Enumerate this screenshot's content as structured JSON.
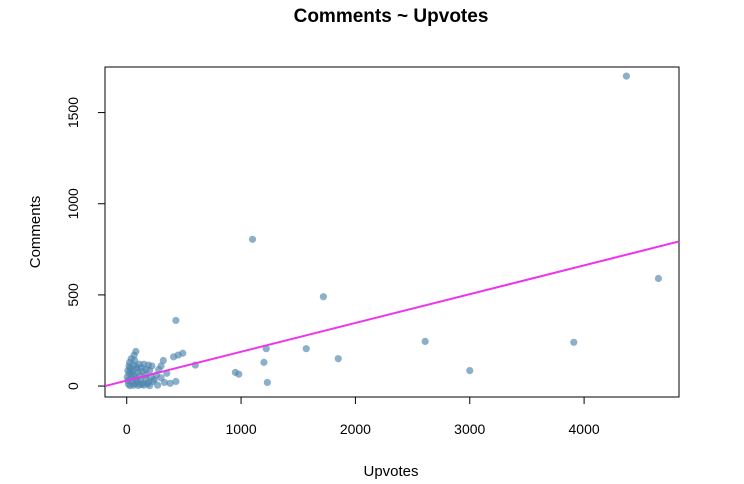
{
  "chart_data": {
    "type": "scatter",
    "title": "Comments ~ Upvotes",
    "xlabel": "Upvotes",
    "ylabel": "Comments",
    "xlim": [
      -190,
      4830
    ],
    "ylim": [
      -60,
      1750
    ],
    "x_ticks": [
      0,
      1000,
      2000,
      3000,
      4000
    ],
    "x_tick_labels": [
      "0",
      "1000",
      "2000",
      "3000",
      "4000"
    ],
    "y_ticks": [
      0,
      500,
      1000,
      1500
    ],
    "y_tick_labels": [
      "0",
      "500",
      "1000",
      "1500"
    ],
    "grid": false,
    "colors": {
      "points": "#4f86ad",
      "fit_line": "#ee33ee"
    },
    "fit_line": {
      "intercept": 30,
      "slope": 0.158
    },
    "points": [
      {
        "x": 4370,
        "y": 1700
      },
      {
        "x": 1100,
        "y": 805
      },
      {
        "x": 4650,
        "y": 590
      },
      {
        "x": 1720,
        "y": 490
      },
      {
        "x": 430,
        "y": 360
      },
      {
        "x": 2610,
        "y": 245
      },
      {
        "x": 3910,
        "y": 240
      },
      {
        "x": 1220,
        "y": 205
      },
      {
        "x": 1570,
        "y": 205
      },
      {
        "x": 1850,
        "y": 150
      },
      {
        "x": 3000,
        "y": 85
      },
      {
        "x": 1200,
        "y": 130
      },
      {
        "x": 950,
        "y": 75
      },
      {
        "x": 980,
        "y": 65
      },
      {
        "x": 1230,
        "y": 20
      },
      {
        "x": 600,
        "y": 115
      },
      {
        "x": 490,
        "y": 180
      },
      {
        "x": 450,
        "y": 170
      },
      {
        "x": 410,
        "y": 160
      },
      {
        "x": 320,
        "y": 140
      },
      {
        "x": 300,
        "y": 110
      },
      {
        "x": 280,
        "y": 90
      },
      {
        "x": 350,
        "y": 70
      },
      {
        "x": 260,
        "y": 60
      },
      {
        "x": 300,
        "y": 45
      },
      {
        "x": 240,
        "y": 35
      },
      {
        "x": 330,
        "y": 20
      },
      {
        "x": 380,
        "y": 15
      },
      {
        "x": 430,
        "y": 25
      },
      {
        "x": 270,
        "y": 5
      },
      {
        "x": 80,
        "y": 190
      },
      {
        "x": 40,
        "y": 150
      },
      {
        "x": 70,
        "y": 140
      },
      {
        "x": 20,
        "y": 110
      },
      {
        "x": 60,
        "y": 115
      },
      {
        "x": 110,
        "y": 120
      },
      {
        "x": 150,
        "y": 120
      },
      {
        "x": 190,
        "y": 115
      },
      {
        "x": 220,
        "y": 110
      },
      {
        "x": 30,
        "y": 100
      },
      {
        "x": 90,
        "y": 95
      },
      {
        "x": 130,
        "y": 100
      },
      {
        "x": 170,
        "y": 90
      },
      {
        "x": 10,
        "y": 85
      },
      {
        "x": 50,
        "y": 80
      },
      {
        "x": 100,
        "y": 75
      },
      {
        "x": 140,
        "y": 80
      },
      {
        "x": 200,
        "y": 85
      },
      {
        "x": 20,
        "y": 70
      },
      {
        "x": 60,
        "y": 60
      },
      {
        "x": 110,
        "y": 55
      },
      {
        "x": 160,
        "y": 60
      },
      {
        "x": 210,
        "y": 50
      },
      {
        "x": 5,
        "y": 50
      },
      {
        "x": 40,
        "y": 45
      },
      {
        "x": 80,
        "y": 40
      },
      {
        "x": 120,
        "y": 35
      },
      {
        "x": 170,
        "y": 40
      },
      {
        "x": 10,
        "y": 30
      },
      {
        "x": 50,
        "y": 25
      },
      {
        "x": 95,
        "y": 20
      },
      {
        "x": 140,
        "y": 15
      },
      {
        "x": 190,
        "y": 20
      },
      {
        "x": 230,
        "y": 25
      },
      {
        "x": 15,
        "y": 10
      },
      {
        "x": 60,
        "y": 5
      },
      {
        "x": 100,
        "y": 3
      },
      {
        "x": 150,
        "y": 5
      },
      {
        "x": 200,
        "y": 2
      },
      {
        "x": 30,
        "y": 2
      },
      {
        "x": 75,
        "y": 12
      },
      {
        "x": 125,
        "y": 8
      },
      {
        "x": 180,
        "y": 12
      },
      {
        "x": 45,
        "y": 65
      },
      {
        "x": 85,
        "y": 105
      },
      {
        "x": 25,
        "y": 130
      },
      {
        "x": 65,
        "y": 170
      },
      {
        "x": 35,
        "y": 88
      }
    ]
  }
}
